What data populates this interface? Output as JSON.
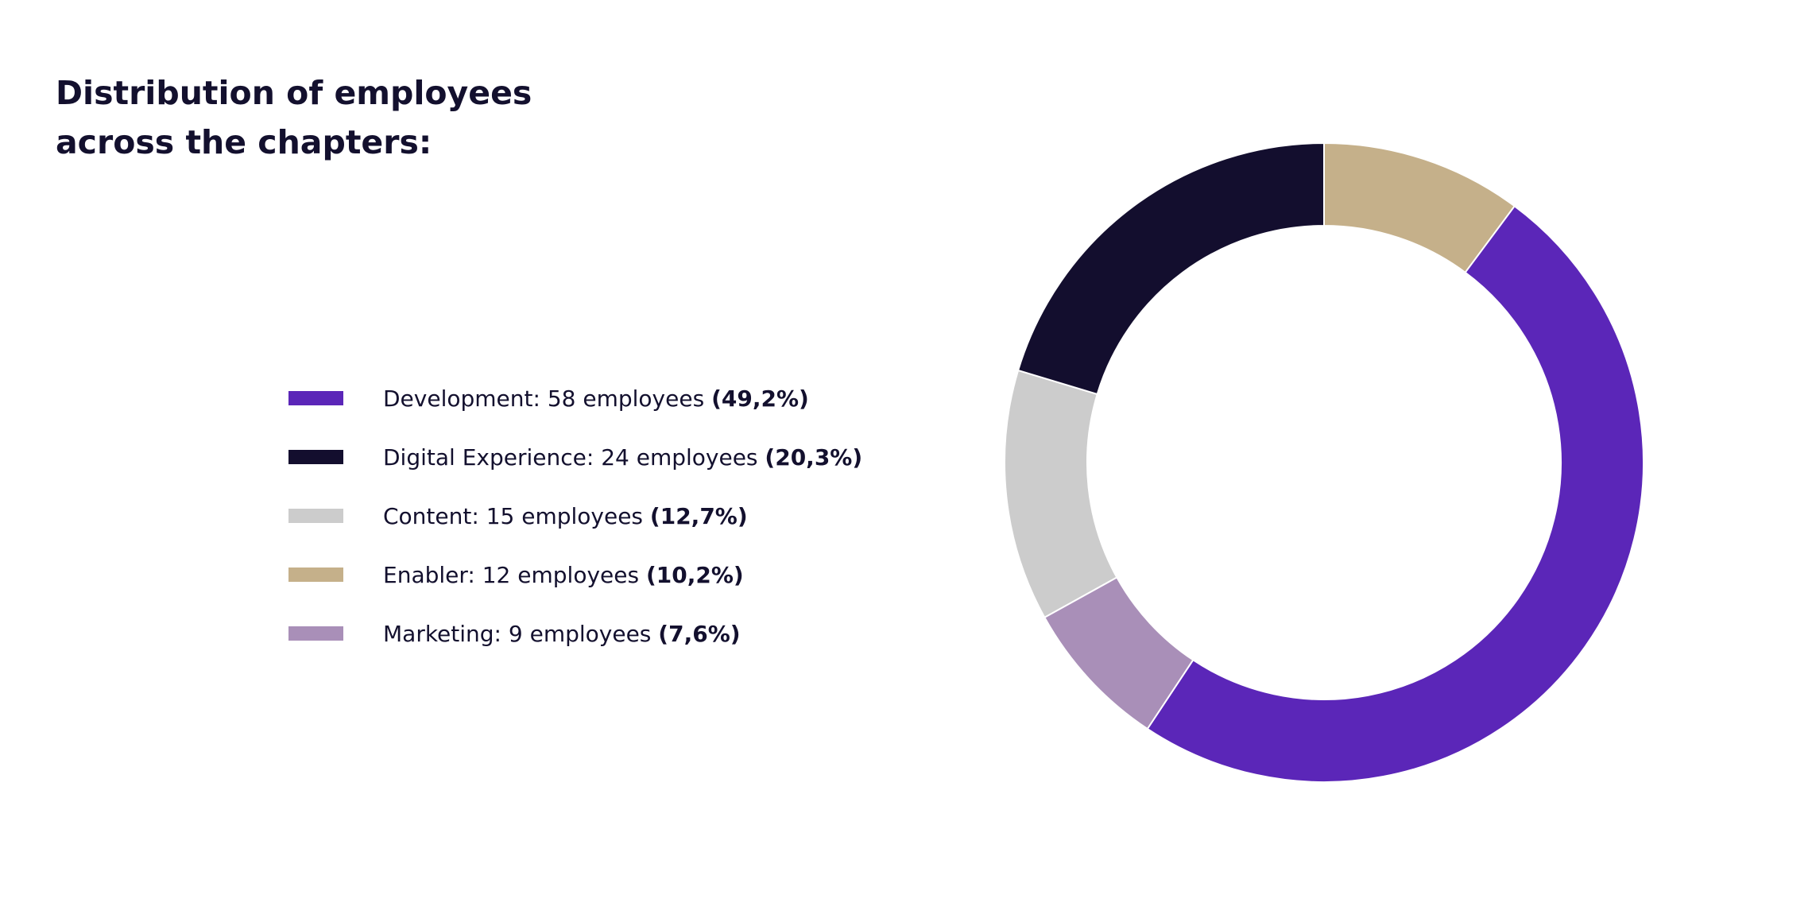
{
  "chart_data": {
    "type": "pie",
    "title": "Distribution of employees across the chapters:",
    "donut": true,
    "slices": [
      {
        "label": "Development",
        "value": 58,
        "percent_label": "(49,2%)",
        "text": "Development: 58 employees ",
        "color": "#5b26b8"
      },
      {
        "label": "Digital Experience",
        "value": 24,
        "percent_label": "(20,3%)",
        "text": "Digital Experience: 24 employees ",
        "color": "#130e2e"
      },
      {
        "label": "Content",
        "value": 15,
        "percent_label": "(12,7%)",
        "text": "Content: 15 employees ",
        "color": "#cccccc"
      },
      {
        "label": "Enabler",
        "value": 12,
        "percent_label": "(10,2%)",
        "text": "Enabler: 12 employees ",
        "color": "#c5b08a"
      },
      {
        "label": "Marketing",
        "value": 9,
        "percent_label": "(7,6%)",
        "text": "Marketing: 9 employees ",
        "color": "#a98fb8"
      }
    ],
    "draw_order_clockwise_from_top": [
      "Enabler",
      "Development",
      "Marketing",
      "Content",
      "Digital Experience"
    ],
    "legend_position": "left"
  }
}
